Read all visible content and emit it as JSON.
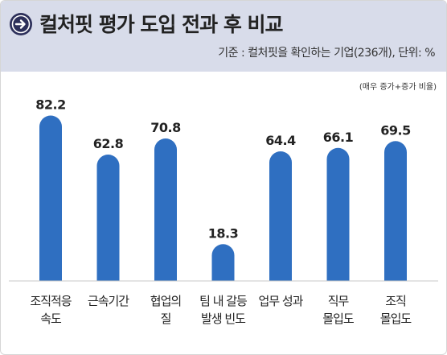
{
  "header": {
    "title": "컬처핏 평가 도입 전과 후 비교",
    "subtitle": "기준 : 컬처핏을 확인하는 기업(236개), 단위: %",
    "icon": "arrow-right-circle-icon"
  },
  "note": "(매우 증가+증가 비율)",
  "colors": {
    "bar": "#2f6fc1",
    "header_bg": "#d8dcea",
    "icon": "#2c2f5a"
  },
  "chart_data": {
    "type": "bar",
    "title": "컬처핏 평가 도입 전과 후 비교",
    "categories": [
      [
        "조직적응",
        "속도"
      ],
      [
        "근속기간"
      ],
      [
        "협업의",
        "질"
      ],
      [
        "팀 내 갈등",
        "발생 빈도"
      ],
      [
        "업무 성과"
      ],
      [
        "직무",
        "몰입도"
      ],
      [
        "조직",
        "몰입도"
      ]
    ],
    "values": [
      82.2,
      62.8,
      70.8,
      18.3,
      64.4,
      66.1,
      69.5
    ],
    "value_labels": [
      "82.2",
      "62.8",
      "70.8",
      "18.3",
      "64.4",
      "66.1",
      "69.5"
    ],
    "ylim": [
      0,
      100
    ],
    "xlabel": "",
    "ylabel": "",
    "grid": false,
    "legend": "none"
  }
}
